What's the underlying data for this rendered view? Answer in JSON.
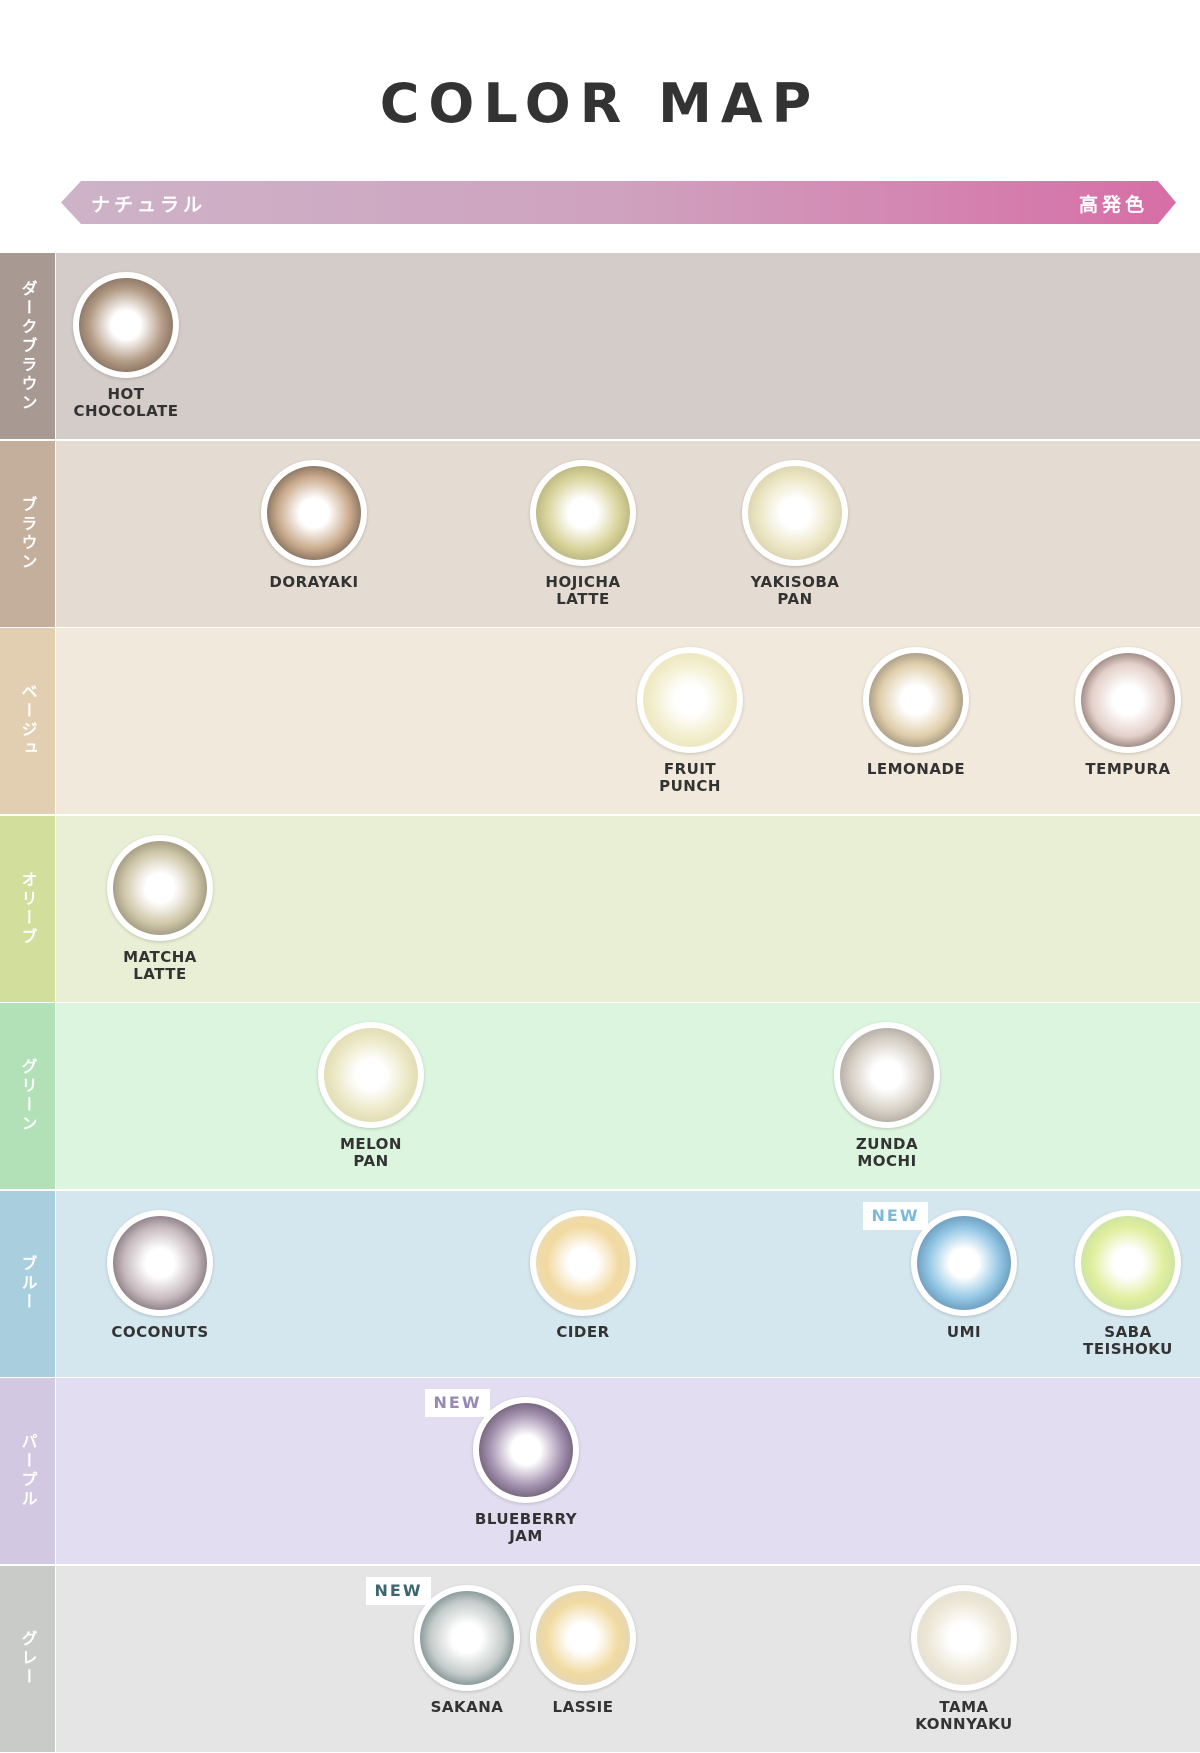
{
  "title": "COLOR MAP",
  "scale": {
    "left": "ナチュラル",
    "right": "高発色",
    "colors": [
      "#cdb3c8",
      "#d76ea6"
    ]
  },
  "rows": [
    {
      "label": "ダークブラウン",
      "bg": "#d4ccc8",
      "side": "#a89993",
      "lenses": [
        {
          "name": "HOT\nCHOCOLATE",
          "ring": "#5e4d44",
          "mid": "#b49c86"
        }
      ]
    },
    {
      "label": "ブラウン",
      "bg": "#e4dcd2",
      "side": "#c4ae9c",
      "lenses": [
        {
          "name": "DORAYAKI",
          "ring": "#3f3a38",
          "mid": "#c9a98a"
        },
        {
          "name": "HOJICHA\nLATTE",
          "ring": "#9b9a6a",
          "mid": "#d9d39a"
        },
        {
          "name": "YAKISOBA\nPAN",
          "ring": "#c9c19a",
          "mid": "#ece6c4"
        }
      ]
    },
    {
      "label": "ベージュ",
      "bg": "#f1e9dc",
      "side": "#e2cfb1",
      "lenses": [
        {
          "name": "FRUIT\nPUNCH",
          "ring": "#e6dfaa",
          "mid": "#f3efcf"
        },
        {
          "name": "LEMONADE",
          "ring": "#6b6560",
          "mid": "#e0ceaa"
        },
        {
          "name": "TEMPURA",
          "ring": "#4c3a34",
          "mid": "#e3cfc8"
        }
      ]
    },
    {
      "label": "オリーブ",
      "bg": "#e8efd4",
      "side": "#d2de9c",
      "lenses": [
        {
          "name": "MATCHA\nLATTE",
          "ring": "#6e6a5a",
          "mid": "#cfc6a8"
        }
      ]
    },
    {
      "label": "グリーン",
      "bg": "#dcf5df",
      "side": "#b2e1b8",
      "lenses": [
        {
          "name": "MELON\nPAN",
          "ring": "#d4cf9c",
          "mid": "#ece8c6"
        },
        {
          "name": "ZUNDA\nMOCHI",
          "ring": "#8e8a86",
          "mid": "#d6cfc4"
        }
      ]
    },
    {
      "label": "ブルー",
      "bg": "#d4e6ee",
      "side": "#a9cede",
      "lenses": [
        {
          "name": "COCONUTS",
          "ring": "#4c4148",
          "mid": "#c5b8bd"
        },
        {
          "name": "CIDER",
          "ring": "#e9dcc0",
          "mid": "#f2d9a0"
        },
        {
          "name": "UMI",
          "ring": "#50708f",
          "mid": "#8ec4e3",
          "badge": "NEW",
          "badge_color": "#7bb9d9"
        },
        {
          "name": "SABA\nTEISHOKU",
          "ring": "#b9d8b0",
          "mid": "#e0ee9c"
        }
      ]
    },
    {
      "label": "パープル",
      "bg": "#e2ddf1",
      "side": "#d2c8e2",
      "lenses": [
        {
          "name": "BLUEBERRY\nJAM",
          "ring": "#3f3544",
          "mid": "#a491b0",
          "badge": "NEW",
          "badge_color": "#9987b5"
        }
      ]
    },
    {
      "label": "グレー",
      "bg": "#e5e5e5",
      "side": "#c9cbc9",
      "lenses": [
        {
          "name": "SAKANA",
          "ring": "#3d5a5c",
          "mid": "#c6cccb",
          "badge": "NEW",
          "badge_color": "#3e6670"
        },
        {
          "name": "LASSIE",
          "ring": "#d6d3cf",
          "mid": "#f1daa0"
        },
        {
          "name": "TAMA\nKONNYAKU",
          "ring": "#dcd8cf",
          "mid": "#ede7d6"
        }
      ]
    }
  ]
}
